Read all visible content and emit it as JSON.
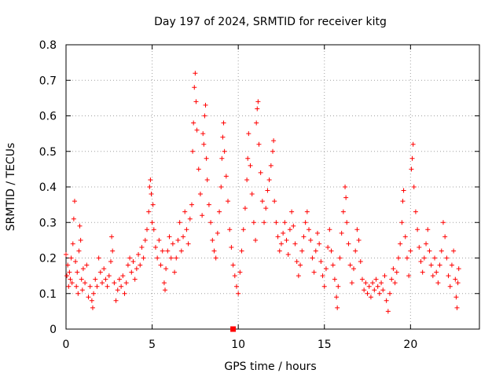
{
  "chart_data": {
    "type": "scatter",
    "title": "Day 197 of 2024, SRMTID for receiver kitg",
    "xlabel": "GPS time / hours",
    "ylabel": "SRMTID / TECUs",
    "xlim": [
      0,
      24
    ],
    "ylim": [
      0,
      0.8
    ],
    "xticks": [
      0,
      5,
      10,
      15,
      20
    ],
    "xtick_labels": [
      "0",
      "5",
      "10",
      "15",
      "20"
    ],
    "yticks": [
      0,
      0.1,
      0.2,
      0.3,
      0.4,
      0.5,
      0.6,
      0.7,
      0.8
    ],
    "ytick_labels": [
      "0",
      "0.1",
      "0.2",
      "0.3",
      "0.4",
      "0.5",
      "0.6",
      "0.7",
      "0.8"
    ],
    "grid": true,
    "color": "#ff0000",
    "marker": "plus",
    "baseline_marker": {
      "x": 9.7,
      "y": 0,
      "marker": "square"
    },
    "series": [
      {
        "name": "SRMTID kitg",
        "points": [
          [
            0.0,
            0.21
          ],
          [
            0.05,
            0.15
          ],
          [
            0.1,
            0.18
          ],
          [
            0.15,
            0.12
          ],
          [
            0.2,
            0.16
          ],
          [
            0.25,
            0.14
          ],
          [
            0.3,
            0.2
          ],
          [
            0.35,
            0.13
          ],
          [
            0.4,
            0.24
          ],
          [
            0.45,
            0.31
          ],
          [
            0.5,
            0.36
          ],
          [
            0.55,
            0.19
          ],
          [
            0.6,
            0.12
          ],
          [
            0.65,
            0.16
          ],
          [
            0.7,
            0.1
          ],
          [
            0.75,
            0.22
          ],
          [
            0.8,
            0.29
          ],
          [
            0.85,
            0.25
          ],
          [
            0.9,
            0.14
          ],
          [
            0.95,
            0.11
          ],
          [
            1.0,
            0.17
          ],
          [
            1.1,
            0.13
          ],
          [
            1.2,
            0.18
          ],
          [
            1.3,
            0.09
          ],
          [
            1.4,
            0.12
          ],
          [
            1.5,
            0.08
          ],
          [
            1.55,
            0.06
          ],
          [
            1.6,
            0.1
          ],
          [
            1.7,
            0.14
          ],
          [
            1.8,
            0.12
          ],
          [
            1.9,
            0.2
          ],
          [
            2.0,
            0.16
          ],
          [
            2.1,
            0.13
          ],
          [
            2.2,
            0.17
          ],
          [
            2.3,
            0.14
          ],
          [
            2.4,
            0.12
          ],
          [
            2.5,
            0.15
          ],
          [
            2.6,
            0.19
          ],
          [
            2.65,
            0.26
          ],
          [
            2.7,
            0.22
          ],
          [
            2.8,
            0.13
          ],
          [
            2.9,
            0.08
          ],
          [
            3.0,
            0.11
          ],
          [
            3.1,
            0.14
          ],
          [
            3.2,
            0.12
          ],
          [
            3.3,
            0.15
          ],
          [
            3.4,
            0.1
          ],
          [
            3.5,
            0.13
          ],
          [
            3.6,
            0.18
          ],
          [
            3.7,
            0.2
          ],
          [
            3.8,
            0.16
          ],
          [
            3.9,
            0.19
          ],
          [
            4.0,
            0.14
          ],
          [
            4.1,
            0.17
          ],
          [
            4.2,
            0.21
          ],
          [
            4.3,
            0.18
          ],
          [
            4.4,
            0.23
          ],
          [
            4.5,
            0.2
          ],
          [
            4.6,
            0.25
          ],
          [
            4.7,
            0.28
          ],
          [
            4.8,
            0.33
          ],
          [
            4.85,
            0.4
          ],
          [
            4.9,
            0.42
          ],
          [
            4.95,
            0.38
          ],
          [
            5.0,
            0.3
          ],
          [
            5.05,
            0.35
          ],
          [
            5.1,
            0.28
          ],
          [
            5.2,
            0.23
          ],
          [
            5.3,
            0.2
          ],
          [
            5.4,
            0.25
          ],
          [
            5.5,
            0.18
          ],
          [
            5.6,
            0.22
          ],
          [
            5.7,
            0.13
          ],
          [
            5.75,
            0.11
          ],
          [
            5.8,
            0.17
          ],
          [
            5.9,
            0.22
          ],
          [
            6.0,
            0.26
          ],
          [
            6.1,
            0.2
          ],
          [
            6.2,
            0.24
          ],
          [
            6.3,
            0.16
          ],
          [
            6.4,
            0.2
          ],
          [
            6.5,
            0.25
          ],
          [
            6.6,
            0.3
          ],
          [
            6.7,
            0.22
          ],
          [
            6.8,
            0.26
          ],
          [
            6.9,
            0.33
          ],
          [
            7.0,
            0.28
          ],
          [
            7.1,
            0.24
          ],
          [
            7.2,
            0.31
          ],
          [
            7.3,
            0.35
          ],
          [
            7.35,
            0.5
          ],
          [
            7.4,
            0.58
          ],
          [
            7.45,
            0.68
          ],
          [
            7.5,
            0.72
          ],
          [
            7.55,
            0.64
          ],
          [
            7.6,
            0.56
          ],
          [
            7.7,
            0.45
          ],
          [
            7.8,
            0.38
          ],
          [
            7.9,
            0.32
          ],
          [
            7.95,
            0.55
          ],
          [
            8.0,
            0.52
          ],
          [
            8.05,
            0.6
          ],
          [
            8.1,
            0.63
          ],
          [
            8.15,
            0.48
          ],
          [
            8.2,
            0.42
          ],
          [
            8.3,
            0.35
          ],
          [
            8.4,
            0.3
          ],
          [
            8.5,
            0.25
          ],
          [
            8.6,
            0.22
          ],
          [
            8.7,
            0.2
          ],
          [
            8.8,
            0.27
          ],
          [
            8.9,
            0.33
          ],
          [
            9.0,
            0.4
          ],
          [
            9.05,
            0.48
          ],
          [
            9.1,
            0.54
          ],
          [
            9.15,
            0.58
          ],
          [
            9.2,
            0.5
          ],
          [
            9.3,
            0.43
          ],
          [
            9.4,
            0.36
          ],
          [
            9.5,
            0.28
          ],
          [
            9.6,
            0.23
          ],
          [
            9.7,
            0.18
          ],
          [
            9.8,
            0.15
          ],
          [
            9.9,
            0.12
          ],
          [
            10.0,
            0.1
          ],
          [
            10.1,
            0.16
          ],
          [
            10.2,
            0.22
          ],
          [
            10.3,
            0.28
          ],
          [
            10.4,
            0.34
          ],
          [
            10.5,
            0.42
          ],
          [
            10.55,
            0.48
          ],
          [
            10.6,
            0.55
          ],
          [
            10.7,
            0.46
          ],
          [
            10.8,
            0.38
          ],
          [
            10.9,
            0.3
          ],
          [
            11.0,
            0.25
          ],
          [
            11.05,
            0.58
          ],
          [
            11.1,
            0.62
          ],
          [
            11.15,
            0.64
          ],
          [
            11.2,
            0.52
          ],
          [
            11.3,
            0.44
          ],
          [
            11.4,
            0.36
          ],
          [
            11.5,
            0.3
          ],
          [
            11.6,
            0.34
          ],
          [
            11.7,
            0.39
          ],
          [
            11.8,
            0.42
          ],
          [
            11.9,
            0.46
          ],
          [
            12.0,
            0.5
          ],
          [
            12.05,
            0.53
          ],
          [
            12.1,
            0.36
          ],
          [
            12.2,
            0.3
          ],
          [
            12.3,
            0.26
          ],
          [
            12.4,
            0.22
          ],
          [
            12.5,
            0.24
          ],
          [
            12.6,
            0.27
          ],
          [
            12.7,
            0.3
          ],
          [
            12.8,
            0.25
          ],
          [
            12.9,
            0.21
          ],
          [
            13.0,
            0.28
          ],
          [
            13.1,
            0.33
          ],
          [
            13.2,
            0.29
          ],
          [
            13.3,
            0.24
          ],
          [
            13.4,
            0.19
          ],
          [
            13.5,
            0.15
          ],
          [
            13.6,
            0.18
          ],
          [
            13.7,
            0.22
          ],
          [
            13.8,
            0.26
          ],
          [
            13.9,
            0.3
          ],
          [
            14.0,
            0.33
          ],
          [
            14.1,
            0.28
          ],
          [
            14.2,
            0.25
          ],
          [
            14.3,
            0.2
          ],
          [
            14.4,
            0.16
          ],
          [
            14.5,
            0.22
          ],
          [
            14.6,
            0.27
          ],
          [
            14.7,
            0.24
          ],
          [
            14.8,
            0.19
          ],
          [
            14.9,
            0.15
          ],
          [
            15.0,
            0.12
          ],
          [
            15.1,
            0.17
          ],
          [
            15.2,
            0.23
          ],
          [
            15.3,
            0.28
          ],
          [
            15.4,
            0.22
          ],
          [
            15.5,
            0.18
          ],
          [
            15.6,
            0.14
          ],
          [
            15.7,
            0.09
          ],
          [
            15.75,
            0.06
          ],
          [
            15.8,
            0.12
          ],
          [
            15.9,
            0.2
          ],
          [
            16.0,
            0.27
          ],
          [
            16.1,
            0.33
          ],
          [
            16.2,
            0.4
          ],
          [
            16.25,
            0.37
          ],
          [
            16.3,
            0.3
          ],
          [
            16.4,
            0.24
          ],
          [
            16.5,
            0.18
          ],
          [
            16.6,
            0.13
          ],
          [
            16.7,
            0.17
          ],
          [
            16.8,
            0.22
          ],
          [
            16.9,
            0.28
          ],
          [
            17.0,
            0.25
          ],
          [
            17.1,
            0.19
          ],
          [
            17.2,
            0.14
          ],
          [
            17.3,
            0.11
          ],
          [
            17.4,
            0.13
          ],
          [
            17.5,
            0.1
          ],
          [
            17.6,
            0.12
          ],
          [
            17.7,
            0.09
          ],
          [
            17.8,
            0.13
          ],
          [
            17.9,
            0.11
          ],
          [
            18.0,
            0.14
          ],
          [
            18.1,
            0.12
          ],
          [
            18.2,
            0.1
          ],
          [
            18.3,
            0.13
          ],
          [
            18.4,
            0.11
          ],
          [
            18.5,
            0.15
          ],
          [
            18.6,
            0.08
          ],
          [
            18.7,
            0.05
          ],
          [
            18.8,
            0.1
          ],
          [
            18.9,
            0.14
          ],
          [
            19.0,
            0.17
          ],
          [
            19.1,
            0.13
          ],
          [
            19.2,
            0.16
          ],
          [
            19.3,
            0.2
          ],
          [
            19.4,
            0.24
          ],
          [
            19.5,
            0.3
          ],
          [
            19.55,
            0.36
          ],
          [
            19.6,
            0.39
          ],
          [
            19.7,
            0.26
          ],
          [
            19.8,
            0.2
          ],
          [
            19.9,
            0.15
          ],
          [
            20.0,
            0.22
          ],
          [
            20.05,
            0.45
          ],
          [
            20.1,
            0.48
          ],
          [
            20.15,
            0.52
          ],
          [
            20.2,
            0.4
          ],
          [
            20.3,
            0.33
          ],
          [
            20.4,
            0.28
          ],
          [
            20.5,
            0.23
          ],
          [
            20.6,
            0.19
          ],
          [
            20.7,
            0.16
          ],
          [
            20.8,
            0.2
          ],
          [
            20.9,
            0.24
          ],
          [
            21.0,
            0.28
          ],
          [
            21.1,
            0.22
          ],
          [
            21.2,
            0.18
          ],
          [
            21.3,
            0.15
          ],
          [
            21.4,
            0.2
          ],
          [
            21.5,
            0.16
          ],
          [
            21.6,
            0.13
          ],
          [
            21.7,
            0.18
          ],
          [
            21.8,
            0.22
          ],
          [
            21.9,
            0.3
          ],
          [
            22.0,
            0.26
          ],
          [
            22.1,
            0.2
          ],
          [
            22.2,
            0.15
          ],
          [
            22.3,
            0.12
          ],
          [
            22.4,
            0.18
          ],
          [
            22.5,
            0.22
          ],
          [
            22.6,
            0.14
          ],
          [
            22.65,
            0.09
          ],
          [
            22.7,
            0.06
          ],
          [
            22.75,
            0.13
          ],
          [
            22.8,
            0.17
          ]
        ]
      }
    ]
  }
}
